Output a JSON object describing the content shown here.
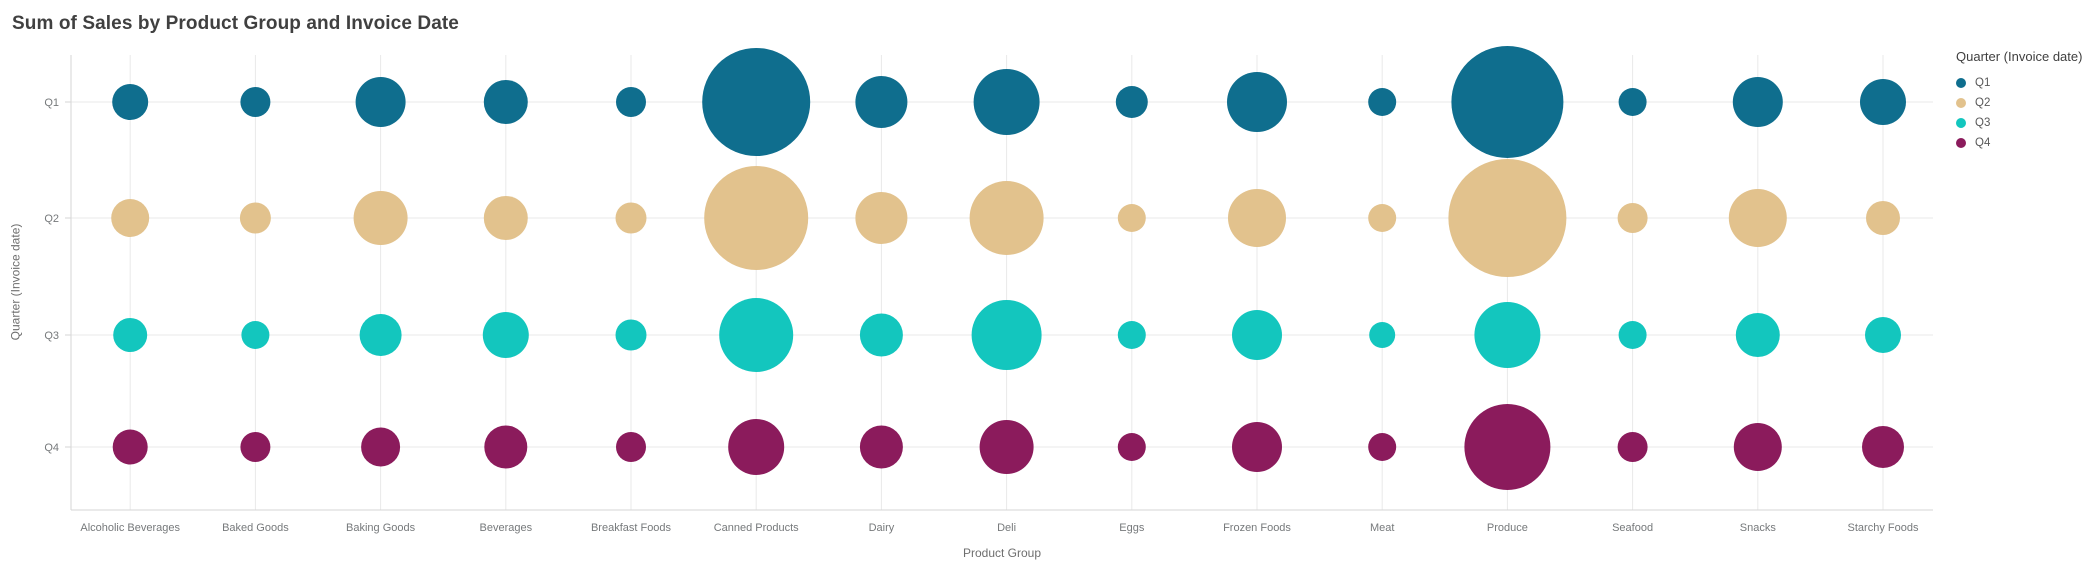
{
  "title": "Sum of Sales by Product Group and Invoice Date",
  "axes": {
    "x_title": "Product Group",
    "y_title": "Quarter (Invoice date)"
  },
  "legend": {
    "title": "Quarter (Invoice date)"
  },
  "chart_data": {
    "type": "scatter",
    "subtype": "bubble",
    "title": "Sum of Sales by Product Group and Invoice Date",
    "xlabel": "Product Group",
    "ylabel": "Quarter (Invoice date)",
    "legend_position": "right",
    "grid": true,
    "size_encodes": "Sum of Sales",
    "categories": [
      "Alcoholic Beverages",
      "Baked Goods",
      "Baking Goods",
      "Beverages",
      "Breakfast Foods",
      "Canned Products",
      "Dairy",
      "Deli",
      "Eggs",
      "Frozen Foods",
      "Meat",
      "Produce",
      "Seafood",
      "Snacks",
      "Starchy Foods"
    ],
    "y_categories": [
      "Q1",
      "Q2",
      "Q3",
      "Q4"
    ],
    "series": [
      {
        "name": "Q1",
        "color": "#0f6e8e",
        "bubble_radius_px": [
          18,
          15,
          25,
          22,
          15,
          54,
          26,
          33,
          16,
          30,
          14,
          56,
          14,
          25,
          23
        ]
      },
      {
        "name": "Q2",
        "color": "#e2c28d",
        "bubble_radius_px": [
          19,
          15.5,
          27,
          22,
          15.5,
          52,
          26,
          37,
          14,
          29,
          14,
          59,
          15,
          29,
          17
        ]
      },
      {
        "name": "Q3",
        "color": "#13c6be",
        "bubble_radius_px": [
          17,
          14,
          21,
          23,
          15.5,
          37,
          21.5,
          35,
          14,
          25,
          13,
          33,
          14,
          22,
          18
        ]
      },
      {
        "name": "Q4",
        "color": "#8b1b5c",
        "bubble_radius_px": [
          17.5,
          15,
          19.5,
          21.5,
          15,
          28,
          21.5,
          27,
          14,
          25,
          14,
          43,
          15,
          24,
          21
        ]
      }
    ]
  },
  "colors": {
    "title_text": "#404040",
    "axis_text": "#6e6e6e",
    "tick_text": "#76797b",
    "gridline": "#e9e9e9",
    "axis_line": "#d6d6d6",
    "background": "#ffffff"
  }
}
